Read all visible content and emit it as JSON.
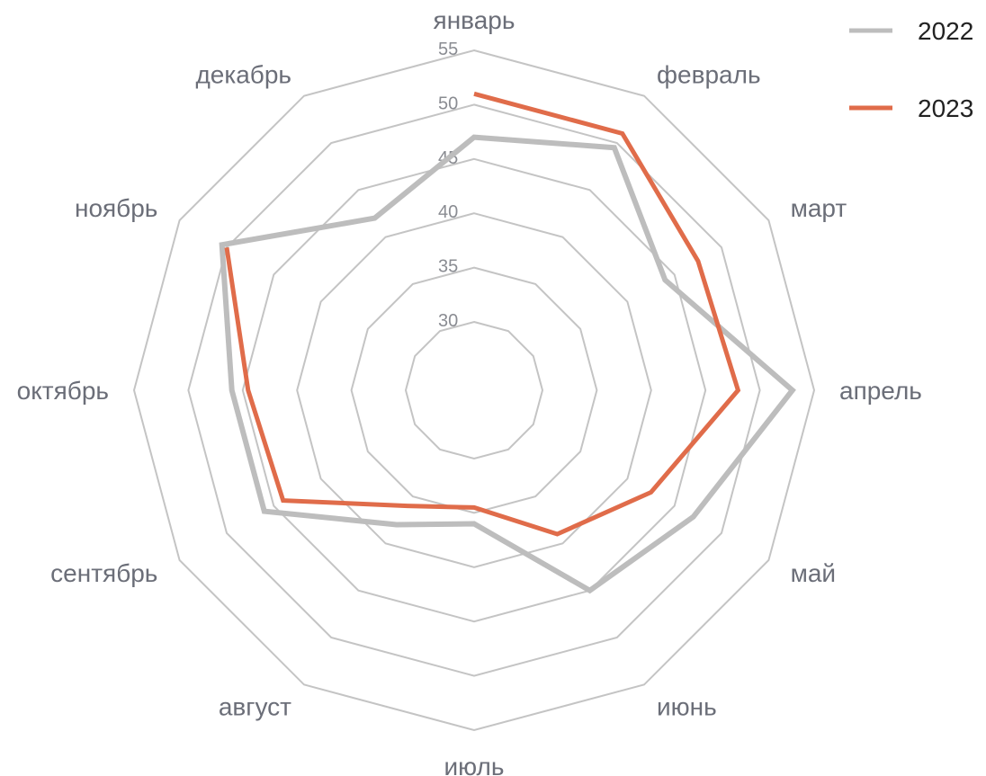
{
  "chart_data": {
    "type": "radar",
    "categories": [
      "январь",
      "февраль",
      "март",
      "апрель",
      "май",
      "июнь",
      "июль",
      "август",
      "сентябрь",
      "октябрь",
      "ноябрь",
      "декабрь"
    ],
    "rlim": [
      30,
      55
    ],
    "ticks": [
      "30",
      "35",
      "40",
      "45",
      "50",
      "55"
    ],
    "grid": true,
    "legend_position": "top-right",
    "series": [
      {
        "name": "2022",
        "color": "#bdbdbd",
        "values": [
          47,
          49.5,
          44,
          53,
          47,
          45,
          36,
          38,
          46,
          46,
          50.5,
          42
        ]
      },
      {
        "name": "2023",
        "color": "#e06c4a",
        "values": [
          51,
          51,
          47.5,
          48,
          42.5,
          39,
          34.5,
          36,
          44,
          44.5,
          50,
          null
        ]
      }
    ]
  }
}
